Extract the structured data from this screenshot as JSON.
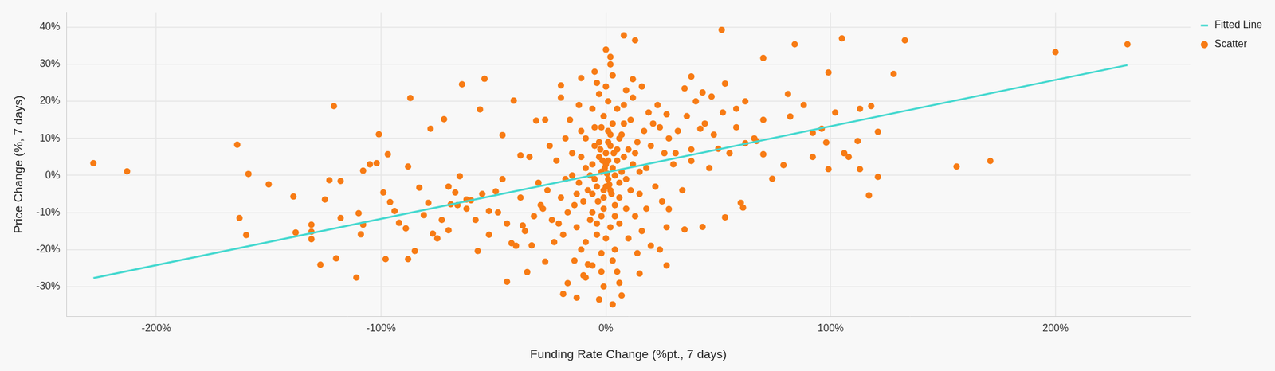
{
  "chart_data": {
    "type": "scatter",
    "x_label": "Funding Rate Change (%pt., 7 days)",
    "y_label": "Price Change (%, 7 days)",
    "xlim": [
      -240,
      260
    ],
    "ylim": [
      -38,
      44
    ],
    "xticks": [
      {
        "value": -200,
        "label": "-200%"
      },
      {
        "value": -100,
        "label": "-100%"
      },
      {
        "value": 0,
        "label": "0%"
      },
      {
        "value": 100,
        "label": "100%"
      },
      {
        "value": 200,
        "label": "200%"
      }
    ],
    "yticks": [
      {
        "value": -30,
        "label": "-30%"
      },
      {
        "value": -20,
        "label": "-20%"
      },
      {
        "value": -10,
        "label": "-10%"
      },
      {
        "value": 0,
        "label": "0%"
      },
      {
        "value": 10,
        "label": "10%"
      },
      {
        "value": 20,
        "label": "20%"
      },
      {
        "value": 30,
        "label": "30%"
      },
      {
        "value": 40,
        "label": "40%"
      }
    ],
    "grid": true,
    "legend": "upper right",
    "series": [
      {
        "name": "Scatter",
        "type": "scatter",
        "marker": "circle",
        "color": "#f77b14",
        "x": [
          -228,
          -213,
          -164,
          -163,
          -160,
          -159,
          -150,
          -139,
          -138,
          -131,
          -131,
          -131,
          -127,
          -125,
          -123,
          -121,
          -120,
          -118,
          -118,
          -111,
          -110,
          -109,
          -108,
          -108,
          -105,
          -102,
          -101,
          -99,
          -98,
          -97,
          -96,
          -94,
          -92,
          -89,
          -88,
          -88,
          -85,
          -83,
          -87,
          -81,
          -79,
          -78,
          -77,
          -75,
          -73,
          -72,
          -70,
          -69,
          -67,
          -65,
          -64,
          -62,
          -60,
          -57,
          -56,
          -54,
          -52,
          -49,
          -46,
          -44,
          -42,
          -41,
          -38,
          -37,
          -35,
          -33,
          -31,
          -29,
          -27,
          -19,
          -17,
          -13,
          -3,
          3,
          7,
          -9,
          -6,
          15,
          24,
          27,
          35,
          43,
          53,
          60,
          51.5,
          8,
          13,
          -11,
          -20,
          0,
          2,
          84,
          105,
          133,
          232,
          200,
          128,
          70,
          99,
          171,
          156,
          117,
          121,
          121,
          113,
          118,
          113,
          108,
          106,
          99,
          98,
          96,
          92,
          92,
          82,
          79,
          74,
          70,
          67,
          62,
          61,
          58,
          53,
          47,
          42,
          38,
          50,
          35,
          31,
          28,
          27,
          81,
          88,
          102,
          112,
          38,
          43,
          -2,
          1,
          3,
          -4,
          5,
          0,
          -1,
          2,
          -3,
          4,
          6,
          -6,
          8,
          -8,
          10,
          -10,
          1,
          -2,
          3,
          -5,
          7,
          -7,
          9,
          -9,
          12,
          -12,
          14,
          -14,
          2,
          -1,
          0,
          5,
          -4,
          6,
          11,
          -11,
          15,
          -15,
          13,
          -13,
          17,
          -17,
          18,
          -18,
          20,
          -20,
          22,
          -22,
          24,
          -24,
          26,
          -26,
          1,
          -3,
          4,
          -2,
          8,
          -6,
          10,
          -9,
          0,
          3,
          12,
          -11,
          16,
          -16,
          19,
          -19,
          28,
          -28,
          30,
          -30,
          7,
          -7,
          9,
          -9,
          0,
          2,
          -3,
          4,
          -5,
          1,
          -1,
          6,
          -6,
          11,
          -11,
          13,
          -13,
          15,
          -15,
          3,
          -2,
          5,
          -4,
          9,
          -8,
          14,
          -12,
          18,
          -18,
          21,
          -21,
          25,
          -25,
          32,
          -32,
          34,
          -34,
          36,
          -36,
          38,
          -38,
          40,
          -40,
          2,
          -1,
          6,
          -5,
          12,
          -10,
          16,
          -14,
          20,
          -20,
          23,
          -23,
          27,
          -27,
          44,
          -44,
          46,
          -46,
          48,
          -48,
          52,
          -52,
          55,
          -55,
          58,
          -58,
          62,
          -62,
          66,
          -66,
          70,
          -70,
          0.5,
          -0.5,
          1.5,
          -1.5,
          2.5,
          -2.5,
          0,
          3.5,
          -3.5,
          1,
          -1,
          2,
          -2,
          4,
          -4,
          5,
          -5,
          6,
          -6,
          8
        ],
        "values": [
          3.3,
          1.1,
          8.3,
          -11.5,
          -16.1,
          0.4,
          -2.4,
          -5.7,
          -15.4,
          -13.3,
          -17.2,
          -15.2,
          -24.1,
          -6.5,
          -1.3,
          18.7,
          -22.4,
          -11.5,
          -1.5,
          -27.6,
          -10.2,
          -15.9,
          -13.3,
          1.3,
          3.0,
          3.3,
          11.1,
          -4.6,
          -22.6,
          5.7,
          -7.2,
          -9.6,
          -12.8,
          -14.3,
          -22.6,
          2.4,
          -20.4,
          -3.3,
          20.9,
          -10.7,
          -7.4,
          12.6,
          -15.7,
          -17.0,
          -12.0,
          15.2,
          -14.8,
          -7.8,
          -4.6,
          -0.2,
          24.6,
          -6.5,
          -6.7,
          -20.4,
          17.8,
          26.1,
          -9.6,
          -4.3,
          10.9,
          -28.7,
          -18.3,
          20.2,
          5.4,
          -13.5,
          -26.1,
          -18.9,
          14.8,
          -8.0,
          -23.3,
          -32.0,
          -29.1,
          -33.0,
          -33.5,
          -34.8,
          -32.4,
          -27.6,
          -24.3,
          -26.5,
          -20.0,
          -24.3,
          -14.6,
          -13.9,
          -11.3,
          -7.4,
          39.3,
          37.8,
          36.5,
          26.3,
          24.3,
          34,
          32,
          35.4,
          37.0,
          36.5,
          35.4,
          33.3,
          27.4,
          31.7,
          27.8,
          3.9,
          2.4,
          -5.4,
          -0.4,
          11.8,
          1.7,
          18.7,
          18.0,
          5.0,
          6.0,
          1.7,
          8.9,
          12.6,
          5.0,
          11.5,
          15.9,
          2.8,
          -0.9,
          5.7,
          9.3,
          8.7,
          -8.7,
          18.0,
          24.8,
          21.3,
          12.6,
          3.9,
          7.2,
          23.5,
          6.0,
          -9.1,
          16.5,
          22.0,
          19.0,
          17.0,
          9.3,
          26.7,
          22.4,
          1,
          -1,
          2,
          -3,
          4,
          6,
          -6,
          8,
          9,
          -8,
          -2,
          3,
          5,
          -4,
          7,
          -7,
          12,
          -11,
          14,
          13,
          11,
          -12,
          -9,
          10,
          3,
          -2,
          9,
          -8,
          -14,
          16,
          -17,
          18,
          -16,
          -13,
          15,
          12,
          -5,
          6,
          -11,
          -14,
          12,
          -10,
          2,
          -1,
          8,
          -6,
          -3,
          4,
          13,
          -12,
          6,
          -4,
          20,
          22,
          -20,
          -21,
          19,
          18,
          -17,
          -18,
          24,
          -23,
          21,
          -20,
          -15,
          15,
          17,
          -16,
          10,
          -9,
          3,
          -2,
          1,
          0,
          -1,
          2,
          3,
          -4,
          5,
          0,
          -1,
          9,
          -9,
          10,
          -10,
          -4,
          5,
          6,
          -5,
          1,
          0,
          27,
          -26,
          -26,
          25,
          23,
          -24,
          -21,
          19,
          -9,
          10,
          14,
          -13,
          -7,
          8,
          12,
          -11,
          -4,
          5,
          16,
          -15,
          7,
          -6,
          20,
          -19,
          30,
          -30,
          -29,
          28,
          26,
          -27,
          24,
          -23,
          -19,
          21,
          19,
          -18,
          -14,
          15,
          14,
          -13,
          2,
          -1,
          11,
          -10,
          17,
          -16,
          6,
          -5,
          13,
          -12,
          20,
          -9,
          10,
          -8,
          15,
          -3,
          0.5,
          2,
          -2.5,
          4,
          -5,
          7,
          -3,
          6,
          -7,
          4,
          -4,
          11,
          13,
          -11,
          -13,
          7,
          8,
          -6,
          -5,
          14
        ]
      },
      {
        "name": "Fitted Line",
        "type": "line",
        "line_style": "solid",
        "color": "#44d8cf",
        "x": [
          -228,
          232
        ],
        "values": [
          -27.7,
          29.8
        ]
      }
    ]
  }
}
